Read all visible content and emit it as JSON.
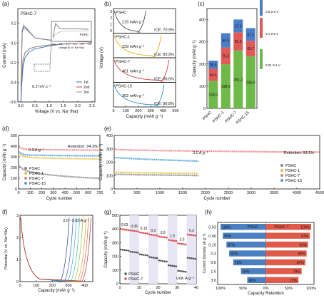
{
  "panel_labels": [
    "(a)",
    "(b)",
    "(c)",
    "(d)",
    "(e)",
    "(f)",
    "(g)",
    "(h)"
  ],
  "chart_data": [
    {
      "panel": "a",
      "type": "line",
      "title": "PSHC-7",
      "xlabel": "Voltage (V vs. Na⁺/Na)",
      "ylabel": "Current (mA)",
      "xlim": [
        -0.1,
        2.6
      ],
      "ylim": [
        -0.6,
        0.35
      ],
      "xticks": [
        "0.0",
        "0.5",
        "1.0",
        "1.5",
        "2.0",
        "2.5"
      ],
      "yticks": [
        "0.2",
        "0.0",
        "-0.2",
        "-0.4",
        "-0.6"
      ],
      "annotation": "0.2 mV s⁻¹",
      "legend": [
        "1st",
        "2nd",
        "3rd"
      ],
      "colors": [
        "#2e6fb7",
        "#d94040",
        "#888888"
      ],
      "inset": {
        "label": "PSHC",
        "xlabel": "Voltage (V vs. Na⁺/Na)",
        "xticks": [
          "0.0",
          "0.5",
          "1.0",
          "1.5",
          "2.0",
          "2.5"
        ]
      },
      "series": [
        {
          "name": "1st",
          "x": [
            2.5,
            1.5,
            1.0,
            0.5,
            0.3,
            0.15,
            0.08,
            0.03,
            0.01,
            0.05,
            0.1,
            0.2,
            0.5,
            1.0,
            1.5,
            2.0,
            2.5
          ],
          "y": [
            0.0,
            -0.01,
            -0.03,
            -0.06,
            -0.09,
            -0.15,
            -0.25,
            -0.45,
            -0.6,
            0.1,
            0.16,
            0.14,
            0.05,
            0.03,
            0.02,
            0.015,
            0.01
          ]
        },
        {
          "name": "2nd",
          "x": [
            2.5,
            1.5,
            1.0,
            0.5,
            0.3,
            0.15,
            0.08,
            0.03,
            0.01,
            0.05,
            0.1,
            0.2,
            0.5,
            1.0,
            1.5,
            2.0,
            2.5
          ],
          "y": [
            0.0,
            -0.01,
            -0.02,
            -0.04,
            -0.06,
            -0.1,
            -0.18,
            -0.35,
            -0.5,
            0.12,
            0.18,
            0.15,
            0.05,
            0.03,
            0.02,
            0.015,
            0.01
          ]
        },
        {
          "name": "3rd",
          "x": [
            2.5,
            1.5,
            1.0,
            0.5,
            0.3,
            0.15,
            0.08,
            0.03,
            0.01,
            0.05,
            0.1,
            0.2,
            0.5,
            1.0,
            1.5,
            2.0,
            2.5
          ],
          "y": [
            0.0,
            -0.01,
            -0.02,
            -0.04,
            -0.06,
            -0.1,
            -0.17,
            -0.33,
            -0.48,
            0.12,
            0.18,
            0.15,
            0.05,
            0.03,
            0.02,
            0.015,
            0.01
          ]
        }
      ]
    },
    {
      "panel": "b",
      "type": "line",
      "xlabel": "Capacity (mAh g⁻¹)",
      "ylabel": "Voltage (V)",
      "xlim": [
        0,
        500
      ],
      "xticks": [
        "0",
        "100",
        "200",
        "300",
        "400",
        "500"
      ],
      "stack_yticks": [
        "3",
        "2",
        "1",
        "0"
      ],
      "subplots": [
        {
          "name": "PSHC",
          "capacity_label": "215 mAh g⁻¹",
          "capacity": 215,
          "ice_label": "ICE: 70.9%",
          "color": "#555555"
        },
        {
          "name": "PSHC-1",
          "capacity_label": "339 mAh g⁻¹",
          "capacity": 339,
          "ice_label": "ICE: 83.9%",
          "color": "#e0b020"
        },
        {
          "name": "PSHC-7",
          "capacity_label": "401 mAh g⁻¹",
          "capacity": 401,
          "ice_label": "ICE: 88.6%",
          "color": "#d94040"
        },
        {
          "name": "PSHC-15",
          "capacity_label": "362 mAh g⁻¹",
          "capacity": 362,
          "ice_label": "ICE: 86.8%",
          "color": "#2e8fd0"
        }
      ]
    },
    {
      "panel": "c",
      "type": "bar",
      "ylabel": "Capacity (mAh g⁻¹)",
      "ylim": [
        0,
        450
      ],
      "yticks": [
        "0",
        "100",
        "200",
        "300",
        "400"
      ],
      "categories": [
        "PSHC",
        "PSHC-1",
        "PSHC-7",
        "PSHC-15"
      ],
      "series": [
        {
          "name": "0.01-0.1 V",
          "values": [
            124.0,
            198.9,
            261.2,
            235.0
          ],
          "color": "#6fb84a"
        },
        {
          "name": "0.1-0.6 V",
          "values": [
            54.5,
            75.6,
            81.6,
            69.7
          ],
          "color": "#e05a5a"
        },
        {
          "name": "0.6-2.5 V",
          "values": [
            36.5,
            64.5,
            57.9,
            57.1
          ],
          "color": "#4a7fc8"
        }
      ],
      "value_labels": [
        [
          "124.0",
          "54.5",
          "36.5"
        ],
        [
          "198.9",
          "75.6",
          "64.5"
        ],
        [
          "261.2",
          "81.6",
          "57.9"
        ],
        [
          "235.0",
          "69.7",
          "57.1"
        ]
      ]
    },
    {
      "panel": "d",
      "type": "scatter",
      "xlabel": "Cycle number",
      "ylabel": "Capacity (mAh g⁻¹)",
      "xlim": [
        0,
        700
      ],
      "ylim": [
        0,
        500
      ],
      "xticks": [
        "0",
        "100",
        "200",
        "300",
        "400",
        "500",
        "600",
        "700"
      ],
      "yticks": [
        "0",
        "100",
        "200",
        "300",
        "400",
        "500"
      ],
      "annotation_rate": "0.3 A g⁻¹",
      "annotation_retention": "Retention: 94.3%",
      "series": [
        {
          "name": "PSHC",
          "color": "#888888",
          "x": [
            1,
            50,
            100,
            200,
            300,
            400,
            500,
            600,
            700
          ],
          "y": [
            220,
            175,
            160,
            140,
            128,
            118,
            110,
            104,
            100
          ]
        },
        {
          "name": "PSHC-1",
          "color": "#e8c040",
          "x": [
            1,
            50,
            100,
            200,
            300,
            400,
            500,
            600,
            700
          ],
          "y": [
            330,
            300,
            295,
            290,
            287,
            285,
            283,
            282,
            280
          ]
        },
        {
          "name": "PSHC-7",
          "color": "#f08080",
          "x": [
            1,
            50,
            100,
            200,
            300,
            400,
            500,
            600,
            700
          ],
          "y": [
            390,
            372,
            370,
            368,
            366,
            365,
            364,
            363,
            362
          ]
        },
        {
          "name": "PSHC-15",
          "color": "#4aa0e0",
          "x": [
            1,
            50,
            100,
            200,
            300,
            400,
            500,
            600,
            700
          ],
          "y": [
            345,
            318,
            316,
            314,
            313,
            312,
            311,
            310,
            310
          ]
        }
      ]
    },
    {
      "panel": "e",
      "type": "scatter",
      "xlabel": "Cycle number",
      "ylabel": "Capacity (mAh g⁻¹)",
      "xlim": [
        0,
        4500
      ],
      "ylim": [
        0,
        400
      ],
      "xticks": [
        "0",
        "500",
        "1000",
        "1500",
        "2000",
        "2500",
        "3000",
        "3500",
        "4000",
        "4500"
      ],
      "yticks": [
        "0",
        "100",
        "200",
        "300",
        "400"
      ],
      "annotation_rate": "3.0 A g⁻¹",
      "annotation_retention": "Retention: 93.1%",
      "series": [
        {
          "name": "PSHC",
          "color": "#888888",
          "x": [
            1,
            500,
            1000,
            1500,
            1850
          ],
          "y": [
            110,
            106,
            104,
            102,
            100
          ]
        },
        {
          "name": "PSHC-1",
          "color": "#e8c040",
          "x": [
            1,
            500,
            1000,
            1500,
            1850
          ],
          "y": [
            125,
            121,
            119,
            117,
            115
          ]
        },
        {
          "name": "PSHC-7",
          "color": "#f08080",
          "x": [
            1,
            500,
            1000,
            1500,
            2000,
            2500,
            3000,
            3500,
            4000,
            4500
          ],
          "y": [
            295,
            290,
            287,
            285,
            283,
            281,
            279,
            277,
            276,
            275
          ]
        },
        {
          "name": "PSHC-15",
          "color": "#4aa0e0",
          "x": [
            1,
            500,
            1000,
            1500,
            1850
          ],
          "y": [
            235,
            225,
            218,
            212,
            208
          ]
        }
      ]
    },
    {
      "panel": "f",
      "type": "line",
      "xlabel": "Capacity (mAh g⁻¹)",
      "ylabel": "Potential (V vs. Na⁺/Na)",
      "xlim": [
        0,
        450
      ],
      "ylim": [
        0,
        3
      ],
      "xticks": [
        "0",
        "100",
        "200",
        "300",
        "400"
      ],
      "yticks": [
        "0",
        "1",
        "2",
        "3"
      ],
      "annotation": "3.0 - 0.03 A g⁻¹",
      "capacities": [
        260,
        285,
        305,
        325,
        345,
        365,
        380,
        395
      ],
      "colors": [
        "#1f3b8c",
        "#2f63c4",
        "#3fa0d8",
        "#40c0a0",
        "#90c040",
        "#e0a030",
        "#e06040",
        "#c03030"
      ]
    },
    {
      "panel": "g",
      "type": "scatter",
      "xlabel": "Cycle number",
      "ylabel": "Capacity (mAh g⁻¹)",
      "xlim": [
        0,
        40
      ],
      "ylim": [
        0,
        500
      ],
      "xticks": [
        "0",
        "10",
        "20",
        "30",
        "40"
      ],
      "yticks": [
        "0",
        "100",
        "200",
        "300",
        "400",
        "500"
      ],
      "unit_label": "Unit: A g⁻¹",
      "rate_labels": [
        "0.03",
        "0.06",
        "0.15",
        "0.3",
        "0.6",
        "1.5",
        "3.0",
        "0.3"
      ],
      "series": [
        {
          "name": "PSHC",
          "color": "#555555",
          "values_per_rate": [
            250,
            235,
            215,
            195,
            170,
            135,
            95,
            190
          ]
        },
        {
          "name": "PSHC-7",
          "color": "#e05050",
          "values_per_rate": [
            400,
            390,
            375,
            360,
            345,
            320,
            295,
            360
          ]
        }
      ]
    },
    {
      "panel": "h",
      "type": "bar",
      "xlabel": "Capacity Retention",
      "ylabel": "Current Density (A g⁻¹)",
      "categories": [
        "0.03",
        "0.06",
        "0.15",
        "0.3",
        "0.6",
        "1.5",
        "3.0"
      ],
      "left_name": "PSHC",
      "right_name": "PSHC-7",
      "left_values": [
        100,
        95,
        87,
        81,
        72,
        55,
        41
      ],
      "right_values": [
        100,
        97,
        93,
        90,
        87,
        79,
        72
      ],
      "left_labels": [
        "100%",
        "95%",
        "87%",
        "81%",
        "72%",
        "55%",
        "41%"
      ],
      "right_labels": [
        "100%",
        "97%",
        "93%",
        "90%",
        "87%",
        "79%",
        "72%"
      ],
      "xtick_left": [
        "100%",
        "50%",
        "0%"
      ],
      "xtick_right": [
        "50%",
        "100%"
      ],
      "colors": {
        "left": "#4a80c0",
        "right": "#e05a4a"
      }
    }
  ]
}
